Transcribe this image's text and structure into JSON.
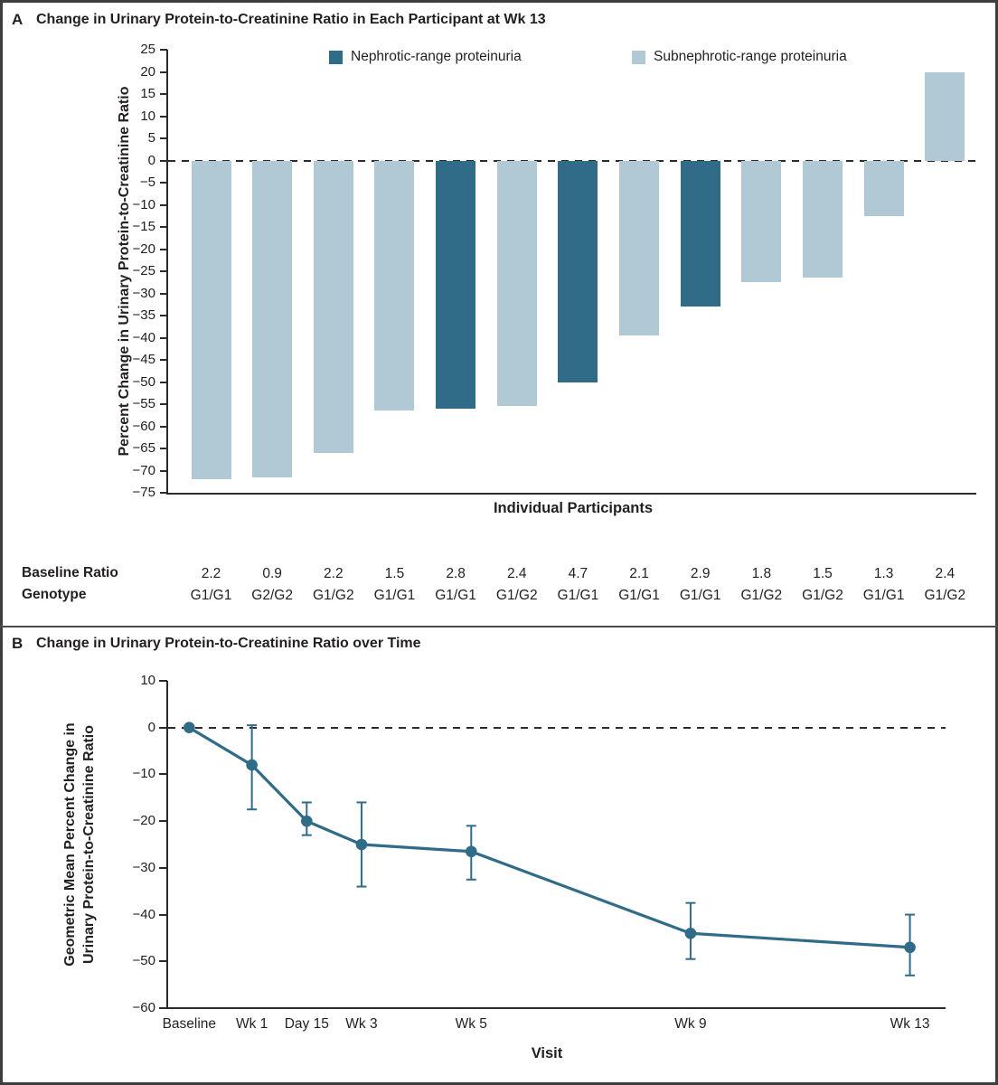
{
  "panel_a": {
    "label": "A",
    "title": "Change in Urinary Protein-to-Creatinine Ratio in Each Participant at Wk 13",
    "legend": {
      "nephrotic": "Nephrotic-range proteinuria",
      "subnephrotic": "Subnephrotic-range proteinuria"
    },
    "ylabel": "Percent Change in Urinary Protein-to-Creatinine Ratio",
    "xlabel": "Individual Participants",
    "table_row_labels": {
      "baseline_ratio": "Baseline Ratio",
      "genotype": "Genotype"
    }
  },
  "panel_b": {
    "label": "B",
    "title": "Change in Urinary Protein-to-Creatinine Ratio over Time",
    "ylabel_line1": "Geometric Mean Percent Change in",
    "ylabel_line2": "Urinary Protein-to-Creatinine Ratio",
    "xlabel": "Visit"
  },
  "colors": {
    "nephrotic": "#306b88",
    "subnephrotic": "#b1c8d5",
    "line": "#306b88",
    "axis": "#2b2b2b",
    "text": "#231f20"
  },
  "chart_data": [
    {
      "type": "bar",
      "title": "Change in Urinary Protein-to-Creatinine Ratio in Each Participant at Wk 13",
      "xlabel": "Individual Participants",
      "ylabel": "Percent Change in Urinary Protein-to-Creatinine Ratio",
      "ylim": [
        -75,
        25
      ],
      "ytick_interval": 5,
      "zero_line": "dashed",
      "grid": false,
      "legend_position": "top",
      "legend": [
        {
          "name": "Nephrotic-range proteinuria",
          "color": "#306b88"
        },
        {
          "name": "Subnephrotic-range proteinuria",
          "color": "#b1c8d5"
        }
      ],
      "participants": [
        {
          "pct_change": -72,
          "category": "subnephrotic",
          "baseline_ratio": "2.2",
          "genotype": "G1/G1"
        },
        {
          "pct_change": -71.5,
          "category": "subnephrotic",
          "baseline_ratio": "0.9",
          "genotype": "G2/G2"
        },
        {
          "pct_change": -66,
          "category": "subnephrotic",
          "baseline_ratio": "2.2",
          "genotype": "G1/G2"
        },
        {
          "pct_change": -56.5,
          "category": "subnephrotic",
          "baseline_ratio": "1.5",
          "genotype": "G1/G1"
        },
        {
          "pct_change": -56,
          "category": "nephrotic",
          "baseline_ratio": "2.8",
          "genotype": "G1/G1"
        },
        {
          "pct_change": -55.5,
          "category": "subnephrotic",
          "baseline_ratio": "2.4",
          "genotype": "G1/G2"
        },
        {
          "pct_change": -50,
          "category": "nephrotic",
          "baseline_ratio": "4.7",
          "genotype": "G1/G1"
        },
        {
          "pct_change": -39.5,
          "category": "subnephrotic",
          "baseline_ratio": "2.1",
          "genotype": "G1/G1"
        },
        {
          "pct_change": -33,
          "category": "nephrotic",
          "baseline_ratio": "2.9",
          "genotype": "G1/G1"
        },
        {
          "pct_change": -27.5,
          "category": "subnephrotic",
          "baseline_ratio": "1.8",
          "genotype": "G1/G2"
        },
        {
          "pct_change": -26.5,
          "category": "subnephrotic",
          "baseline_ratio": "1.5",
          "genotype": "G1/G2"
        },
        {
          "pct_change": -12.5,
          "category": "subnephrotic",
          "baseline_ratio": "1.3",
          "genotype": "G1/G1"
        },
        {
          "pct_change": 20,
          "category": "subnephrotic",
          "baseline_ratio": "2.4",
          "genotype": "G1/G2"
        }
      ]
    },
    {
      "type": "line",
      "title": "Change in Urinary Protein-to-Creatinine Ratio over Time",
      "xlabel": "Visit",
      "ylabel": "Geometric Mean Percent Change in Urinary Protein-to-Creatinine Ratio",
      "ylim": [
        -60,
        10
      ],
      "ytick_interval": 10,
      "zero_line": "dashed",
      "grid": false,
      "error_bars": true,
      "points": [
        {
          "visit": "Baseline",
          "day": 0,
          "mean": 0,
          "ci_low": null,
          "ci_high": null
        },
        {
          "visit": "Wk 1",
          "day": 8,
          "mean": -8,
          "ci_low": -17.5,
          "ci_high": 0.5
        },
        {
          "visit": "Day 15",
          "day": 15,
          "mean": -20,
          "ci_low": -23,
          "ci_high": -16
        },
        {
          "visit": "Wk 3",
          "day": 22,
          "mean": -25,
          "ci_low": -34,
          "ci_high": -16
        },
        {
          "visit": "Wk 5",
          "day": 36,
          "mean": -26.5,
          "ci_low": -32.5,
          "ci_high": -21
        },
        {
          "visit": "Wk 9",
          "day": 64,
          "mean": -44,
          "ci_low": -49.5,
          "ci_high": -37.5
        },
        {
          "visit": "Wk 13",
          "day": 92,
          "mean": -47,
          "ci_low": -53,
          "ci_high": -40
        }
      ]
    }
  ]
}
